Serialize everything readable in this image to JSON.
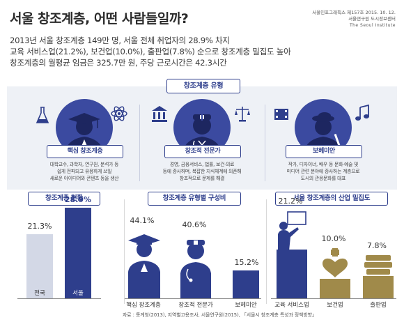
{
  "header": {
    "title": "서울 창조계층, 어떤 사람들일까?",
    "pub_line1": "서울인포그래픽스 제157호  2015. 10. 12.",
    "pub_line2": "서울연구원 도시정보센터",
    "pub_line3": "The Seoul Institute"
  },
  "summary": {
    "line1": "2013년 서울 창조계층 149만 명, 서울 전체 취업자의 28.9% 차지",
    "line2": "교육 서비스업(21.2%), 보건업(10.0%), 출판업(7.8%) 순으로 창조계층 밀집도 높아",
    "line3": "창조계층의 월평균 임금은 325.7만 원, 주당 근로시간은 42.3시간"
  },
  "types_section": {
    "title": "창조계층 유형",
    "types": [
      {
        "name": "핵심 창조계층",
        "desc": "대학교수, 과학자, 연구원, 분석가 등\n쉽게 전파되고 유용하게 쓰일\n새로운 아이디어와 콘텐츠 등을 생산"
      },
      {
        "name": "창조적 전문가",
        "desc": "경영, 금융서비스, 법률, 보건·의료\n등에 종사하며, 복잡한 지식체계에 의존해\n창조적으로 문제를 해결"
      },
      {
        "name": "보헤미안",
        "desc": "작가, 디자이너, 배우 등 문화·예술 및\n미디어 관련 분야에 종사하는 계층으로\n도시의 관용문화를 대표"
      }
    ]
  },
  "colors": {
    "accent": "#2e3e8c",
    "circle": "#3b4aa0",
    "light_bar": "#d3d8e6",
    "panel_bg": "#eef1f6"
  },
  "icons": [
    "scholar-icon",
    "doctor-icon",
    "artist-icon",
    "lab-flask-icon",
    "teacher-icon",
    "health-icon",
    "books-icon"
  ],
  "chart_data": [
    {
      "type": "bar",
      "title": "창조계층 현황",
      "categories": [
        "전국",
        "서울"
      ],
      "values": [
        21.3,
        28.9
      ],
      "value_labels": [
        "21.3%",
        "28.9%"
      ],
      "ylim": [
        0,
        30
      ]
    },
    {
      "type": "bar",
      "title": "창조계층 유형별 구성비",
      "categories": [
        "핵심 창조계층",
        "창조적 전문가",
        "보헤미안"
      ],
      "values": [
        44.1,
        40.6,
        15.2
      ],
      "value_labels": [
        "44.1%",
        "40.6%",
        "15.2%"
      ],
      "ylim": [
        0,
        45
      ]
    },
    {
      "type": "bar",
      "title": "서울 창조계층의 산업 밀집도",
      "categories": [
        "교육 서비스업",
        "보건업",
        "출판업"
      ],
      "values": [
        21.2,
        10.0,
        7.8
      ],
      "value_labels": [
        "21.2%",
        "10.0%",
        "7.8%"
      ],
      "ylim": [
        0,
        22
      ]
    }
  ],
  "source": "자료 : 통계청(2013), 지역별고용조사, 서울연구원(2015), 「서울시 창조계층 특성과 정책방향」"
}
